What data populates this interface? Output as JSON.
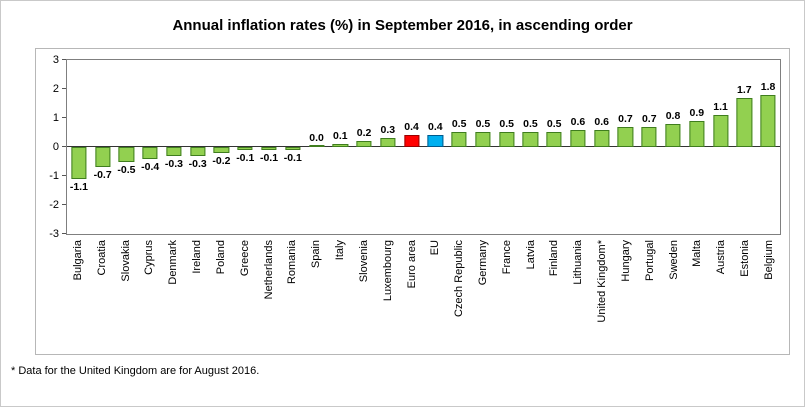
{
  "chart_data": {
    "type": "bar",
    "title": "Annual inflation rates (%) in September 2016, in ascending order",
    "categories": [
      "Bulgaria",
      "Croatia",
      "Slovakia",
      "Cyprus",
      "Denmark",
      "Ireland",
      "Poland",
      "Greece",
      "Netherlands",
      "Romania",
      "Spain",
      "Italy",
      "Slovenia",
      "Luxembourg",
      "Euro area",
      "EU",
      "Czech Republic",
      "Germany",
      "France",
      "Latvia",
      "Finland",
      "Lithuania",
      "United Kingdom*",
      "Hungary",
      "Portugal",
      "Sweden",
      "Malta",
      "Austria",
      "Estonia",
      "Belgium"
    ],
    "values": [
      -1.1,
      -0.7,
      -0.5,
      -0.4,
      -0.3,
      -0.3,
      -0.2,
      -0.1,
      -0.1,
      -0.1,
      0.0,
      0.1,
      0.2,
      0.3,
      0.4,
      0.4,
      0.5,
      0.5,
      0.5,
      0.5,
      0.5,
      0.6,
      0.6,
      0.7,
      0.7,
      0.8,
      0.9,
      1.1,
      1.7,
      1.8
    ],
    "ylim": [
      -3,
      3
    ],
    "yticks": [
      3,
      2,
      1,
      0,
      -1,
      -2,
      -3
    ],
    "grid": false,
    "legend": "none",
    "xlabel": "",
    "ylabel": "",
    "colors": {
      "default_fill": "#92D050",
      "default_border": "#3f7d1e",
      "highlight": {
        "Euro area": {
          "fill": "#FF0000",
          "border": "#9a0000"
        },
        "EU": {
          "fill": "#00B0F0",
          "border": "#005a8c"
        }
      }
    }
  },
  "footnote": "* Data for the United Kingdom are for August 2016."
}
